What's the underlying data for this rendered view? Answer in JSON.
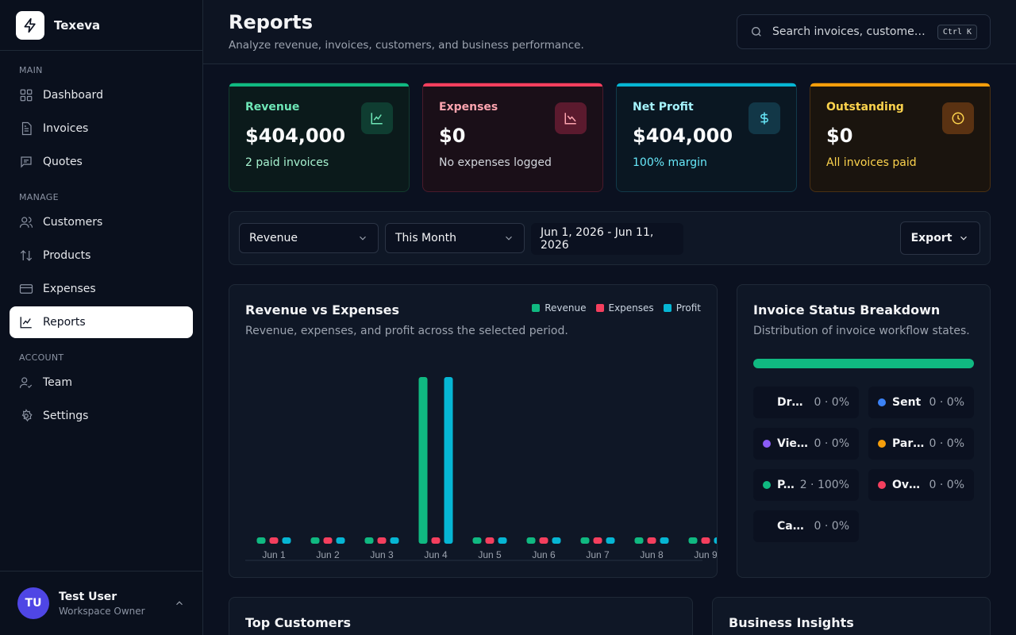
{
  "brand": {
    "name": "Texeva"
  },
  "nav": {
    "sections": [
      {
        "label": "MAIN",
        "items": [
          {
            "label": "Dashboard",
            "icon": "dashboard-icon"
          },
          {
            "label": "Invoices",
            "icon": "invoice-icon"
          },
          {
            "label": "Quotes",
            "icon": "quote-icon"
          }
        ]
      },
      {
        "label": "MANAGE",
        "items": [
          {
            "label": "Customers",
            "icon": "customers-icon"
          },
          {
            "label": "Products",
            "icon": "products-icon"
          },
          {
            "label": "Expenses",
            "icon": "card-icon"
          },
          {
            "label": "Reports",
            "icon": "chart-icon",
            "active": true
          }
        ]
      },
      {
        "label": "ACCOUNT",
        "items": [
          {
            "label": "Team",
            "icon": "team-icon"
          },
          {
            "label": "Settings",
            "icon": "gear-icon"
          }
        ]
      }
    ]
  },
  "user": {
    "initials": "TU",
    "name": "Test User",
    "role": "Workspace Owner"
  },
  "header": {
    "title": "Reports",
    "subtitle": "Analyze revenue, invoices, customers, and business performance.",
    "search_placeholder": "Search invoices, customers, q...",
    "shortcut": "Ctrl K"
  },
  "kpis": {
    "revenue": {
      "title": "Revenue",
      "value": "$404,000",
      "desc": "2 paid invoices"
    },
    "expenses": {
      "title": "Expenses",
      "value": "$0",
      "desc": "No expenses logged"
    },
    "net_profit": {
      "title": "Net Profit",
      "value": "$404,000",
      "desc": "100% margin"
    },
    "outstanding": {
      "title": "Outstanding",
      "value": "$0",
      "desc": "All invoices paid"
    }
  },
  "filters": {
    "metric": "Revenue",
    "period": "This Month",
    "date_range": "Jun 1, 2026 - Jun 11, 2026",
    "export_label": "Export"
  },
  "chart_card": {
    "title": "Revenue vs Expenses",
    "subtitle": "Revenue, expenses, and profit across the selected period."
  },
  "chart_data": {
    "type": "bar",
    "categories": [
      "Jun 1",
      "Jun 2",
      "Jun 3",
      "Jun 4",
      "Jun 5",
      "Jun 6",
      "Jun 7",
      "Jun 8",
      "Jun 9"
    ],
    "series": [
      {
        "name": "Revenue",
        "color": "#10b981",
        "values": [
          0,
          0,
          0,
          404000,
          0,
          0,
          0,
          0,
          0
        ]
      },
      {
        "name": "Expenses",
        "color": "#f43f5e",
        "values": [
          0,
          0,
          0,
          0,
          0,
          0,
          0,
          0,
          0
        ]
      },
      {
        "name": "Profit",
        "color": "#06b6d4",
        "values": [
          0,
          0,
          0,
          404000,
          0,
          0,
          0,
          0,
          0
        ]
      }
    ],
    "xlabel": "",
    "ylabel": "",
    "ylim": [
      0,
      404000
    ],
    "grid": false,
    "legend": "top-right"
  },
  "status_card": {
    "title": "Invoice Status Breakdown",
    "subtitle": "Distribution of invoice workflow states.",
    "bar_color": "#10b981",
    "items": [
      {
        "label": "Draft",
        "value": "0 · 0%",
        "color": ""
      },
      {
        "label": "Sent",
        "value": "0 · 0%",
        "color": "#3b82f6"
      },
      {
        "label": "Vie...",
        "value": "0 · 0%",
        "color": "#8b5cf6"
      },
      {
        "label": "Part...",
        "value": "0 · 0%",
        "color": "#f59e0b"
      },
      {
        "label": "P...",
        "value": "2 · 100%",
        "color": "#10b981"
      },
      {
        "label": "Ove...",
        "value": "0 · 0%",
        "color": "#f43f5e"
      },
      {
        "label": "Can...",
        "value": "0 · 0%",
        "color": ""
      }
    ]
  },
  "bottom": {
    "top_customers": "Top Customers",
    "business_insights": "Business Insights"
  }
}
